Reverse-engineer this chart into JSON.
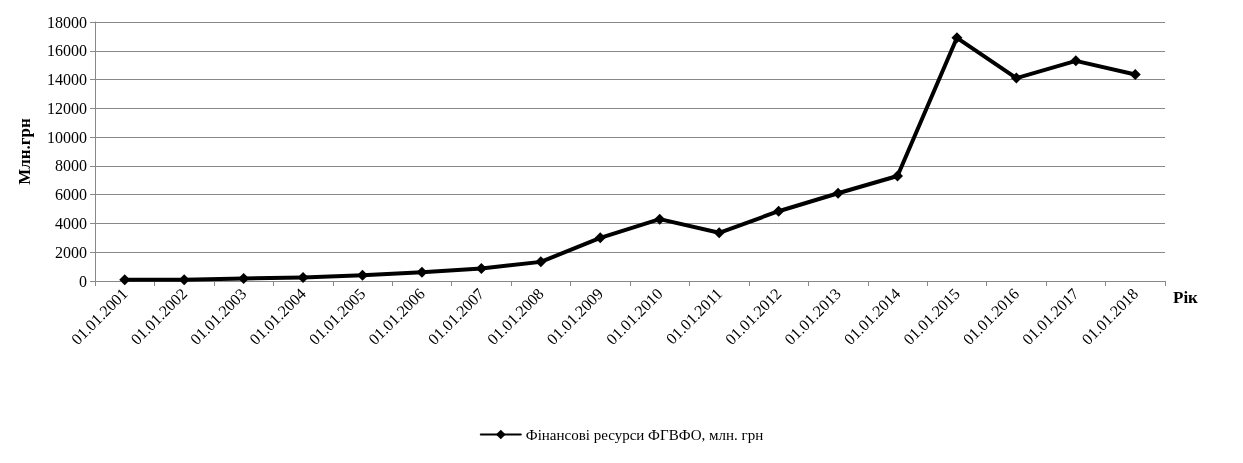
{
  "chart_data": {
    "type": "line",
    "ylabel": "Млн.грн",
    "xlabel": "Рік",
    "categories": [
      "01.01.2001",
      "01.01.2002",
      "01.01.2003",
      "01.01.2004",
      "01.01.2005",
      "01.01.2006",
      "01.01.2007",
      "01.01.2008",
      "01.01.2009",
      "01.01.2010",
      "01.01.2011",
      "01.01.2012",
      "01.01.2013",
      "01.01.2014",
      "01.01.2015",
      "01.01.2016",
      "01.01.2017",
      "01.01.2018"
    ],
    "series": [
      {
        "name": "Фінансові ресурси ФГВФО, млн. грн",
        "color": "#000000",
        "values": [
          80,
          90,
          170,
          250,
          400,
          600,
          870,
          1330,
          3000,
          4300,
          3350,
          4850,
          6100,
          7300,
          16900,
          14100,
          15300,
          14350
        ]
      }
    ],
    "ylim": [
      0,
      18000
    ],
    "yticks": [
      0,
      2000,
      4000,
      6000,
      8000,
      10000,
      12000,
      14000,
      16000,
      18000
    ],
    "grid": "y",
    "legend": "bottom",
    "marker": "diamond",
    "line_style": "solid"
  }
}
